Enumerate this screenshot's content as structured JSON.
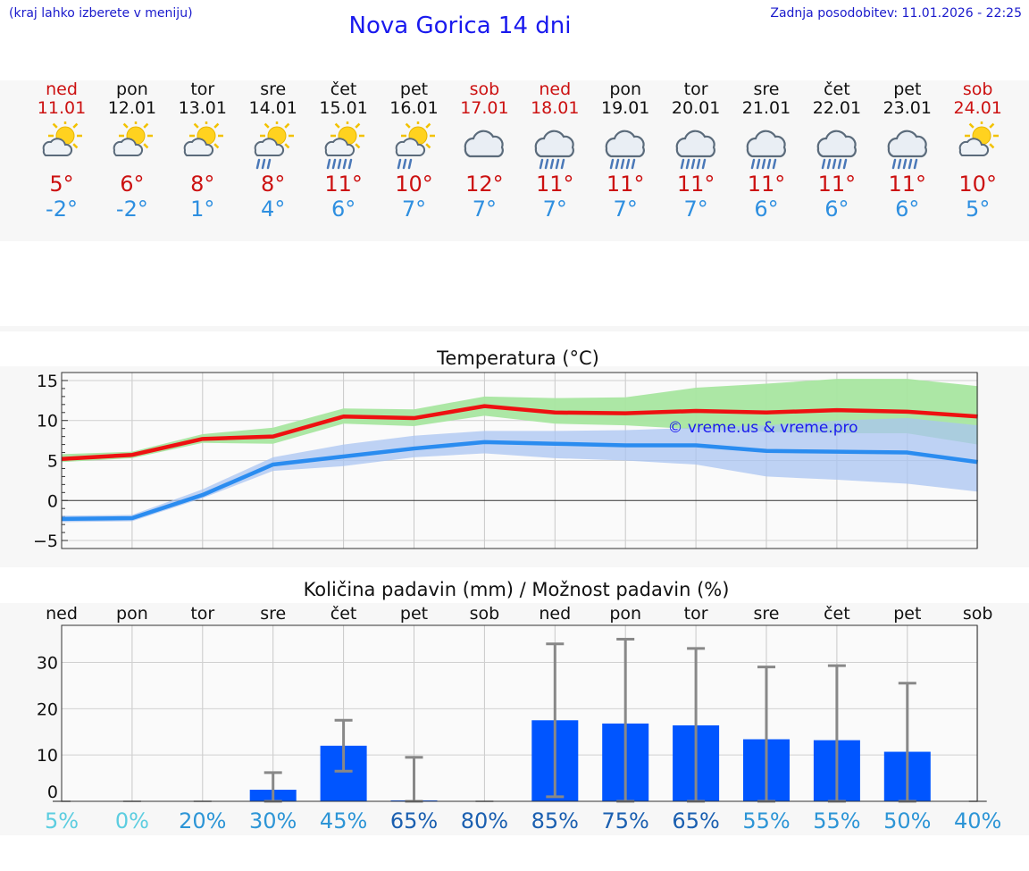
{
  "header": {
    "left_note": "(kraj lahko izberete v meniju)",
    "title": "Nova Gorica 14 dni",
    "updated": "Zadnja posodobitev: 11.01.2026 - 22:25"
  },
  "forecast": [
    {
      "day": "ned",
      "date": "11.01",
      "icon": "sun-cloud-icon",
      "max": "5°",
      "min": "-2°",
      "weekend": true
    },
    {
      "day": "pon",
      "date": "12.01",
      "icon": "sun-cloud-icon",
      "max": "6°",
      "min": "-2°",
      "weekend": false
    },
    {
      "day": "tor",
      "date": "13.01",
      "icon": "sun-cloud-icon",
      "max": "8°",
      "min": "1°",
      "weekend": false
    },
    {
      "day": "sre",
      "date": "14.01",
      "icon": "sun-cloud-light-rain-icon",
      "max": "8°",
      "min": "4°",
      "weekend": false
    },
    {
      "day": "čet",
      "date": "15.01",
      "icon": "sun-cloud-rain-icon",
      "max": "11°",
      "min": "6°",
      "weekend": false
    },
    {
      "day": "pet",
      "date": "16.01",
      "icon": "sun-cloud-light-rain-icon",
      "max": "10°",
      "min": "7°",
      "weekend": false
    },
    {
      "day": "sob",
      "date": "17.01",
      "icon": "cloud-icon",
      "max": "12°",
      "min": "7°",
      "weekend": true
    },
    {
      "day": "ned",
      "date": "18.01",
      "icon": "cloud-rain-icon",
      "max": "11°",
      "min": "7°",
      "weekend": true
    },
    {
      "day": "pon",
      "date": "19.01",
      "icon": "cloud-rain-icon",
      "max": "11°",
      "min": "7°",
      "weekend": false
    },
    {
      "day": "tor",
      "date": "20.01",
      "icon": "cloud-rain-icon",
      "max": "11°",
      "min": "7°",
      "weekend": false
    },
    {
      "day": "sre",
      "date": "21.01",
      "icon": "cloud-rain-icon",
      "max": "11°",
      "min": "6°",
      "weekend": false
    },
    {
      "day": "čet",
      "date": "22.01",
      "icon": "cloud-rain-icon",
      "max": "11°",
      "min": "6°",
      "weekend": false
    },
    {
      "day": "pet",
      "date": "23.01",
      "icon": "cloud-rain-icon",
      "max": "11°",
      "min": "6°",
      "weekend": false
    },
    {
      "day": "sob",
      "date": "24.01",
      "icon": "sun-cloud-icon",
      "max": "10°",
      "min": "5°",
      "weekend": true
    }
  ],
  "colors": {
    "max_line": "#ee1111",
    "max_band": "#a8e6a0",
    "min_line": "#2a8cf0",
    "min_band": "#a9c4f2",
    "bar": "#0055ff",
    "error": "#888888",
    "weekend": "#cc1111",
    "pct_light": "#5ccde0",
    "pct_mid": "#2d95d6",
    "pct_dark": "#1a5fb0"
  },
  "chart_data": [
    {
      "type": "line",
      "title": "Temperatura (°C)",
      "watermark": "© vreme.us & vreme.pro",
      "x": [
        0,
        1,
        2,
        3,
        4,
        5,
        6,
        7,
        8,
        9,
        10,
        11,
        12,
        13
      ],
      "ylim": [
        -6,
        16
      ],
      "yticks": [
        -5,
        0,
        5,
        10,
        15
      ],
      "ytick_labels": [
        "−5",
        "0",
        "5",
        "10",
        "15"
      ],
      "series": [
        {
          "name": "max",
          "values": [
            5.2,
            5.7,
            7.7,
            8.0,
            10.5,
            10.3,
            11.8,
            11.0,
            10.9,
            11.2,
            11.0,
            11.3,
            11.1,
            10.5
          ],
          "band_low": [
            4.8,
            5.3,
            7.2,
            7.1,
            9.6,
            9.3,
            10.6,
            9.6,
            9.4,
            8.9,
            8.6,
            8.4,
            8.4,
            7.0
          ],
          "band_high": [
            5.8,
            6.1,
            8.3,
            9.1,
            11.5,
            11.4,
            13.0,
            12.8,
            12.9,
            14.1,
            14.6,
            15.2,
            15.2,
            14.3
          ]
        },
        {
          "name": "min",
          "values": [
            -2.3,
            -2.2,
            0.7,
            4.5,
            5.5,
            6.5,
            7.3,
            7.1,
            6.9,
            6.9,
            6.2,
            6.1,
            6.0,
            4.8
          ],
          "band_low": [
            -2.7,
            -2.6,
            0.3,
            3.7,
            4.3,
            5.4,
            5.9,
            5.3,
            5.0,
            4.5,
            3.0,
            2.6,
            2.1,
            1.1
          ],
          "band_high": [
            -1.9,
            -1.8,
            1.4,
            5.4,
            7.0,
            8.1,
            8.7,
            8.7,
            8.8,
            9.1,
            9.4,
            10.0,
            10.3,
            9.4
          ]
        }
      ]
    },
    {
      "type": "bar",
      "title": "Količina padavin (mm) / Možnost padavin (%)",
      "categories": [
        "ned",
        "pon",
        "tor",
        "sre",
        "čet",
        "pet",
        "sob",
        "ned",
        "pon",
        "tor",
        "sre",
        "čet",
        "pet",
        "sob"
      ],
      "values": [
        0,
        0,
        0,
        2.5,
        12,
        0.2,
        0,
        17.5,
        16.8,
        16.4,
        13.4,
        13.2,
        10.7,
        0
      ],
      "err_low": [
        0,
        0,
        0,
        0,
        6.5,
        0,
        0,
        1,
        0,
        0,
        0,
        0,
        0,
        0
      ],
      "err_high": [
        0,
        0,
        0,
        6.2,
        17.5,
        9.5,
        0,
        34.0,
        35.0,
        33.0,
        29.0,
        29.3,
        25.5,
        0
      ],
      "ylim": [
        0,
        38
      ],
      "yticks": [
        0,
        10,
        20,
        30
      ],
      "ytick_labels": [
        "0",
        "10",
        "20",
        "30"
      ],
      "probability": [
        "5%",
        "0%",
        "20%",
        "30%",
        "45%",
        "65%",
        "80%",
        "85%",
        "75%",
        "65%",
        "55%",
        "55%",
        "50%",
        "40%"
      ],
      "probability_values": [
        5,
        0,
        20,
        30,
        45,
        65,
        80,
        85,
        75,
        65,
        55,
        55,
        50,
        40
      ]
    }
  ]
}
